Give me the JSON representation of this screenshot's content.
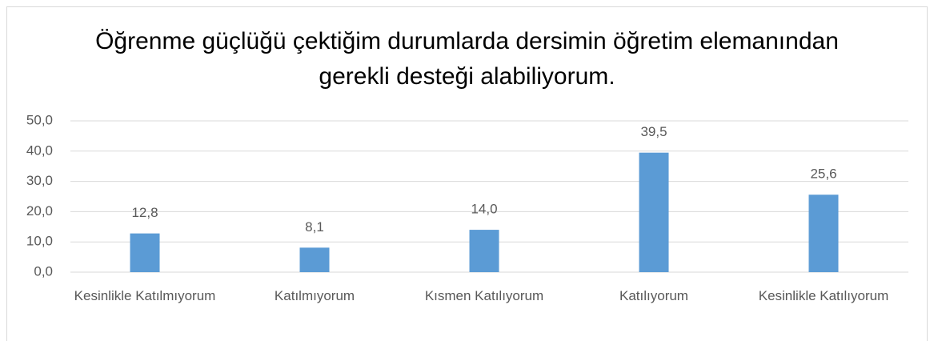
{
  "chart_data": {
    "type": "bar",
    "title": "Öğrenme güçlüğü çektiğim durumlarda dersimin öğretim elemanından gerekli desteği alabiliyorum.",
    "categories": [
      "Kesinlikle Katılmıyorum",
      "Katılmıyorum",
      "Kısmen Katılıyorum",
      "Katılıyorum",
      "Kesinlikle Katılıyorum"
    ],
    "values": [
      12.8,
      8.1,
      14.0,
      39.5,
      25.6
    ],
    "value_labels": [
      "12,8",
      "8,1",
      "14,0",
      "39,5",
      "25,6"
    ],
    "color": "#5b9bd5",
    "ylim": [
      0,
      50
    ],
    "yticks": [
      {
        "value": 0,
        "label": "0,0"
      },
      {
        "value": 10,
        "label": "10,0"
      },
      {
        "value": 20,
        "label": "20,0"
      },
      {
        "value": 30,
        "label": "30,0"
      },
      {
        "value": 40,
        "label": "40,0"
      },
      {
        "value": 50,
        "label": "50,0"
      }
    ],
    "grid": true
  }
}
